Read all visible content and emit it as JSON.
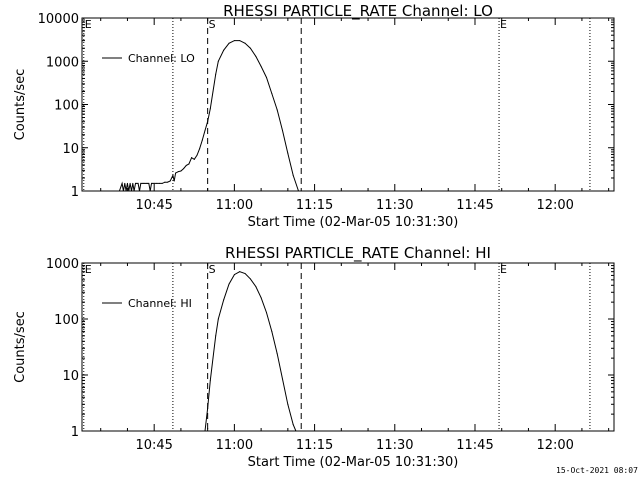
{
  "timestamp": "15-Oct-2021 08:07",
  "chart_data": [
    {
      "type": "line",
      "title": "RHESSI PARTICLE_RATE Channel: LO",
      "xlabel": "Start Time (02-Mar-05 10:31:30)",
      "ylabel": "Counts/sec",
      "yscale": "log",
      "ylim": [
        1,
        10000
      ],
      "xlim": [
        "10:31:30",
        "12:11:00"
      ],
      "yticks": [
        "1",
        "10",
        "100",
        "1000",
        "10000"
      ],
      "xticks": [
        "10:45",
        "11:00",
        "11:15",
        "11:30",
        "11:45",
        "12:00"
      ],
      "legend": {
        "label": "Channel: LO",
        "position": "upper-left"
      },
      "markers": [
        {
          "label": "E",
          "time": "10:31:50",
          "style": "dotted"
        },
        {
          "label": "",
          "time": "10:48:30",
          "style": "dotted"
        },
        {
          "label": "S",
          "time": "10:55:00",
          "style": "dashed"
        },
        {
          "label": "",
          "time": "11:12:30",
          "style": "dashed"
        },
        {
          "label": "E",
          "time": "11:49:30",
          "style": "dotted"
        },
        {
          "label": "",
          "time": "12:06:30",
          "style": "dotted"
        }
      ],
      "series": [
        {
          "name": "Channel: LO",
          "x": [
            "10:38:30",
            "10:39:00",
            "10:39:15",
            "10:39:30",
            "10:39:45",
            "10:40:00",
            "10:40:15",
            "10:40:30",
            "10:40:45",
            "10:41:00",
            "10:41:15",
            "10:41:30",
            "10:41:45",
            "10:42:00",
            "10:42:15",
            "10:42:30",
            "10:42:45",
            "10:43:00",
            "10:43:15",
            "10:43:30",
            "10:43:45",
            "10:44:00",
            "10:44:15",
            "10:44:30",
            "10:44:45",
            "10:45:00",
            "10:45:30",
            "10:46:00",
            "10:46:30",
            "10:47:00",
            "10:47:30",
            "10:48:00",
            "10:48:30",
            "10:48:45",
            "10:49:00",
            "10:49:30",
            "10:50:00",
            "10:50:30",
            "10:51:00",
            "10:51:30",
            "10:52:00",
            "10:52:30",
            "10:53:00",
            "10:53:30",
            "10:54:00",
            "10:54:30",
            "10:55:00",
            "10:55:30",
            "10:56:00",
            "10:56:30",
            "10:57:00",
            "10:58:00",
            "10:59:00",
            "11:00:00",
            "11:01:00",
            "11:02:00",
            "11:03:00",
            "11:04:00",
            "11:05:00",
            "11:06:00",
            "11:07:00",
            "11:08:00",
            "11:09:00",
            "11:10:00",
            "11:11:00",
            "11:12:00"
          ],
          "y": [
            1,
            1.5,
            1,
            1.5,
            1,
            1.5,
            1,
            1.5,
            1,
            1.5,
            1,
            1.5,
            1.5,
            1.5,
            1,
            1.5,
            1.5,
            1.5,
            1.5,
            1.5,
            1.5,
            1.5,
            1,
            1.5,
            1.5,
            1.5,
            1.5,
            1.5,
            1.5,
            1.6,
            1.6,
            1.7,
            2.3,
            1.7,
            2.6,
            2.8,
            2.9,
            3.3,
            3.9,
            4.2,
            5.9,
            5.4,
            6.7,
            9.5,
            15,
            25,
            40,
            80,
            200,
            500,
            1000,
            1800,
            2600,
            3000,
            3000,
            2600,
            2000,
            1300,
            760,
            420,
            180,
            75,
            25,
            7.5,
            2.3,
            1
          ]
        }
      ]
    },
    {
      "type": "line",
      "title": "RHESSI PARTICLE_RATE Channel: HI",
      "xlabel": "Start Time (02-Mar-05 10:31:30)",
      "ylabel": "Counts/sec",
      "yscale": "log",
      "ylim": [
        1,
        1000
      ],
      "xlim": [
        "10:31:30",
        "12:11:00"
      ],
      "yticks": [
        "1",
        "10",
        "100",
        "1000"
      ],
      "xticks": [
        "10:45",
        "11:00",
        "11:15",
        "11:30",
        "11:45",
        "12:00"
      ],
      "legend": {
        "label": "Channel: HI",
        "position": "upper-left"
      },
      "markers": [
        {
          "label": "E",
          "time": "10:31:50",
          "style": "dotted"
        },
        {
          "label": "",
          "time": "10:48:30",
          "style": "dotted"
        },
        {
          "label": "S",
          "time": "10:55:00",
          "style": "dashed"
        },
        {
          "label": "",
          "time": "11:12:30",
          "style": "dashed"
        },
        {
          "label": "E",
          "time": "11:49:30",
          "style": "dotted"
        },
        {
          "label": "",
          "time": "12:06:30",
          "style": "dotted"
        }
      ],
      "series": [
        {
          "name": "Channel: HI",
          "x": [
            "10:54:30",
            "10:55:00",
            "10:55:30",
            "10:56:00",
            "10:56:30",
            "10:57:00",
            "10:58:00",
            "10:59:00",
            "11:00:00",
            "11:01:00",
            "11:02:00",
            "11:03:00",
            "11:04:00",
            "11:05:00",
            "11:06:00",
            "11:07:00",
            "11:08:00",
            "11:09:00",
            "11:10:00",
            "11:11:00",
            "11:11:30"
          ],
          "y": [
            1,
            2.5,
            8,
            20,
            50,
            100,
            220,
            420,
            620,
            700,
            650,
            520,
            380,
            240,
            130,
            60,
            24,
            8.5,
            3,
            1.3,
            1
          ]
        }
      ]
    }
  ]
}
